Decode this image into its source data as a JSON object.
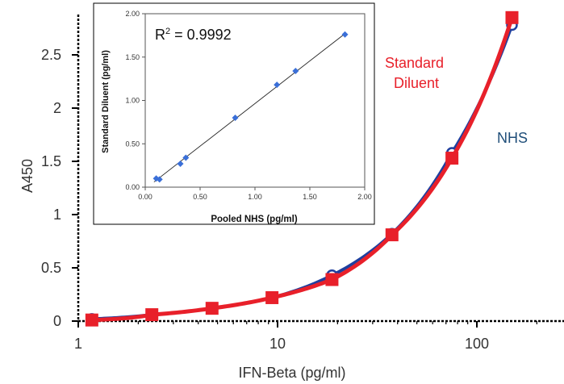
{
  "chart_data": [
    {
      "type": "line",
      "xlabel": "IFN-Beta (pg/ml)",
      "ylabel": "A450",
      "xscale": "log",
      "xlim": [
        1,
        150
      ],
      "ylim": [
        0,
        2.8
      ],
      "xticks": [
        {
          "value": 1,
          "label": "1"
        },
        {
          "value": 10,
          "label": "10"
        },
        {
          "value": 100,
          "label": "100"
        }
      ],
      "yticks": [
        {
          "value": 0,
          "label": "0"
        },
        {
          "value": 0.5,
          "label": "0.5"
        },
        {
          "value": 1,
          "label": "1"
        },
        {
          "value": 1.5,
          "label": "1.5"
        },
        {
          "value": 2,
          "label": "2"
        },
        {
          "value": 2.5,
          "label": "2.5"
        }
      ],
      "grid": false,
      "series": [
        {
          "name": "NHS",
          "color": "#1f3f9e",
          "label_color": "#1f4e79",
          "marker": "circle",
          "x": [
            1.17,
            2.34,
            4.69,
            9.38,
            18.75,
            37.5,
            75,
            150
          ],
          "y": [
            0.02,
            0.06,
            0.12,
            0.22,
            0.43,
            0.82,
            1.58,
            2.78
          ]
        },
        {
          "name": "Standard Diluent",
          "name_lines": [
            "Standard",
            "Diluent"
          ],
          "color": "#e8202a",
          "label_color": "#e8202a",
          "marker": "square",
          "x": [
            1.17,
            2.34,
            4.69,
            9.38,
            18.75,
            37.5,
            75,
            150
          ],
          "y": [
            0.01,
            0.06,
            0.12,
            0.22,
            0.39,
            0.81,
            1.53,
            2.85
          ]
        }
      ],
      "inset": {
        "type": "scatter",
        "xlabel": "Pooled NHS (pg/ml)",
        "ylabel": "Standard Diluent (pg/ml)",
        "annotation": {
          "base": "R",
          "sup": "2",
          "rest": " = 0.9992"
        },
        "xlim": [
          0,
          2
        ],
        "ylim": [
          0,
          2
        ],
        "xticks": [
          "0.00",
          "0.50",
          "1.00",
          "1.50",
          "2.00"
        ],
        "yticks": [
          "0.00",
          "0.50",
          "1.00",
          "1.50",
          "2.00"
        ],
        "marker_color": "#3a6fd8",
        "fit": {
          "x": [
            0.08,
            1.82
          ],
          "y": [
            0.06,
            1.77
          ]
        },
        "points": {
          "x": [
            0.1,
            0.13,
            0.32,
            0.37,
            0.82,
            1.2,
            1.37,
            1.82
          ],
          "y": [
            0.1,
            0.09,
            0.27,
            0.34,
            0.8,
            1.18,
            1.34,
            1.76
          ]
        }
      }
    }
  ]
}
